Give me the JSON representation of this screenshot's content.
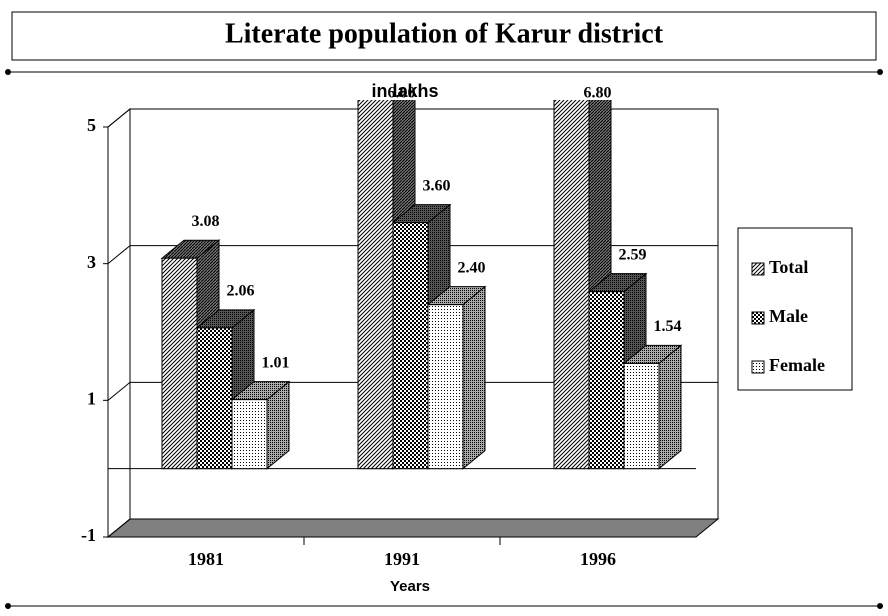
{
  "chart_data": {
    "type": "bar3d",
    "title": "Literate population of Karur district",
    "subtitle": "in lakhs",
    "x_label": "Years",
    "categories": [
      "1981",
      "1991",
      "1996"
    ],
    "series": [
      {
        "name": "Total",
        "color": "#000000",
        "fill_pattern": "diagonal",
        "values": [
          3.08,
          6.0,
          6.8
        ],
        "value_labels": [
          "3.08",
          "6.00",
          "6.80"
        ]
      },
      {
        "name": "Male",
        "color": "#000000",
        "fill_pattern": "checker",
        "values": [
          2.06,
          3.6,
          2.59
        ],
        "value_labels": [
          "2.06",
          "3.60",
          "2.59"
        ]
      },
      {
        "name": "Female",
        "color": "#000000",
        "fill_pattern": "dots",
        "values": [
          1.01,
          2.4,
          1.54
        ],
        "value_labels": [
          "1.01",
          "2.40",
          "1.54"
        ]
      }
    ],
    "ylim": [
      -1,
      5
    ],
    "yticks": [
      -1,
      1,
      3,
      5
    ],
    "grid": true,
    "legend": "right"
  }
}
